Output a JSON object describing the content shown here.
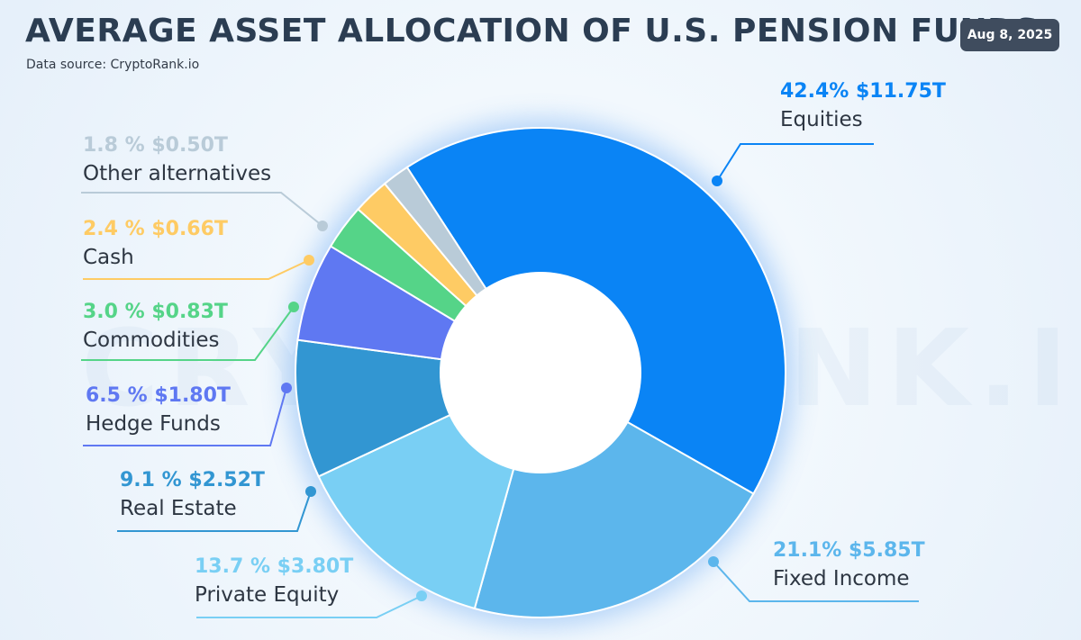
{
  "header": {
    "title": "AVERAGE ASSET ALLOCATION OF U.S. PENSION FUNDS",
    "source": "Data source: CryptoRank.io",
    "date": "Aug 8, 2025"
  },
  "watermark": "CRYPTORANK.IO",
  "chart_data": {
    "type": "pie",
    "variant": "donut",
    "slices": [
      {
        "name": "Equities",
        "value": 42.4,
        "amount": "$11.75T",
        "value_label": "42.4% $11.75T",
        "color": "#0a84f5"
      },
      {
        "name": "Fixed Income",
        "value": 21.1,
        "amount": "$5.85T",
        "value_label": "21.1% $5.85T",
        "color": "#5cb6ec"
      },
      {
        "name": "Private Equity",
        "value": 13.7,
        "amount": "$3.80T",
        "value_label": "13.7 % $3.80T",
        "color": "#79cff4"
      },
      {
        "name": "Real Estate",
        "value": 9.1,
        "amount": "$2.52T",
        "value_label": "9.1 % $2.52T",
        "color": "#3296d2"
      },
      {
        "name": "Hedge Funds",
        "value": 6.5,
        "amount": "$1.80T",
        "value_label": "6.5 % $1.80T",
        "color": "#5f78f2"
      },
      {
        "name": "Commodities",
        "value": 3.0,
        "amount": "$0.83T",
        "value_label": "3.0 % $0.83T",
        "color": "#55d488"
      },
      {
        "name": "Cash",
        "value": 2.4,
        "amount": "$0.66T",
        "value_label": "2.4 % $0.66T",
        "color": "#fecb64"
      },
      {
        "name": "Other alternatives",
        "value": 1.8,
        "amount": "$0.50T",
        "value_label": "1.8 % $0.50T",
        "color": "#b9cbd8"
      }
    ]
  }
}
